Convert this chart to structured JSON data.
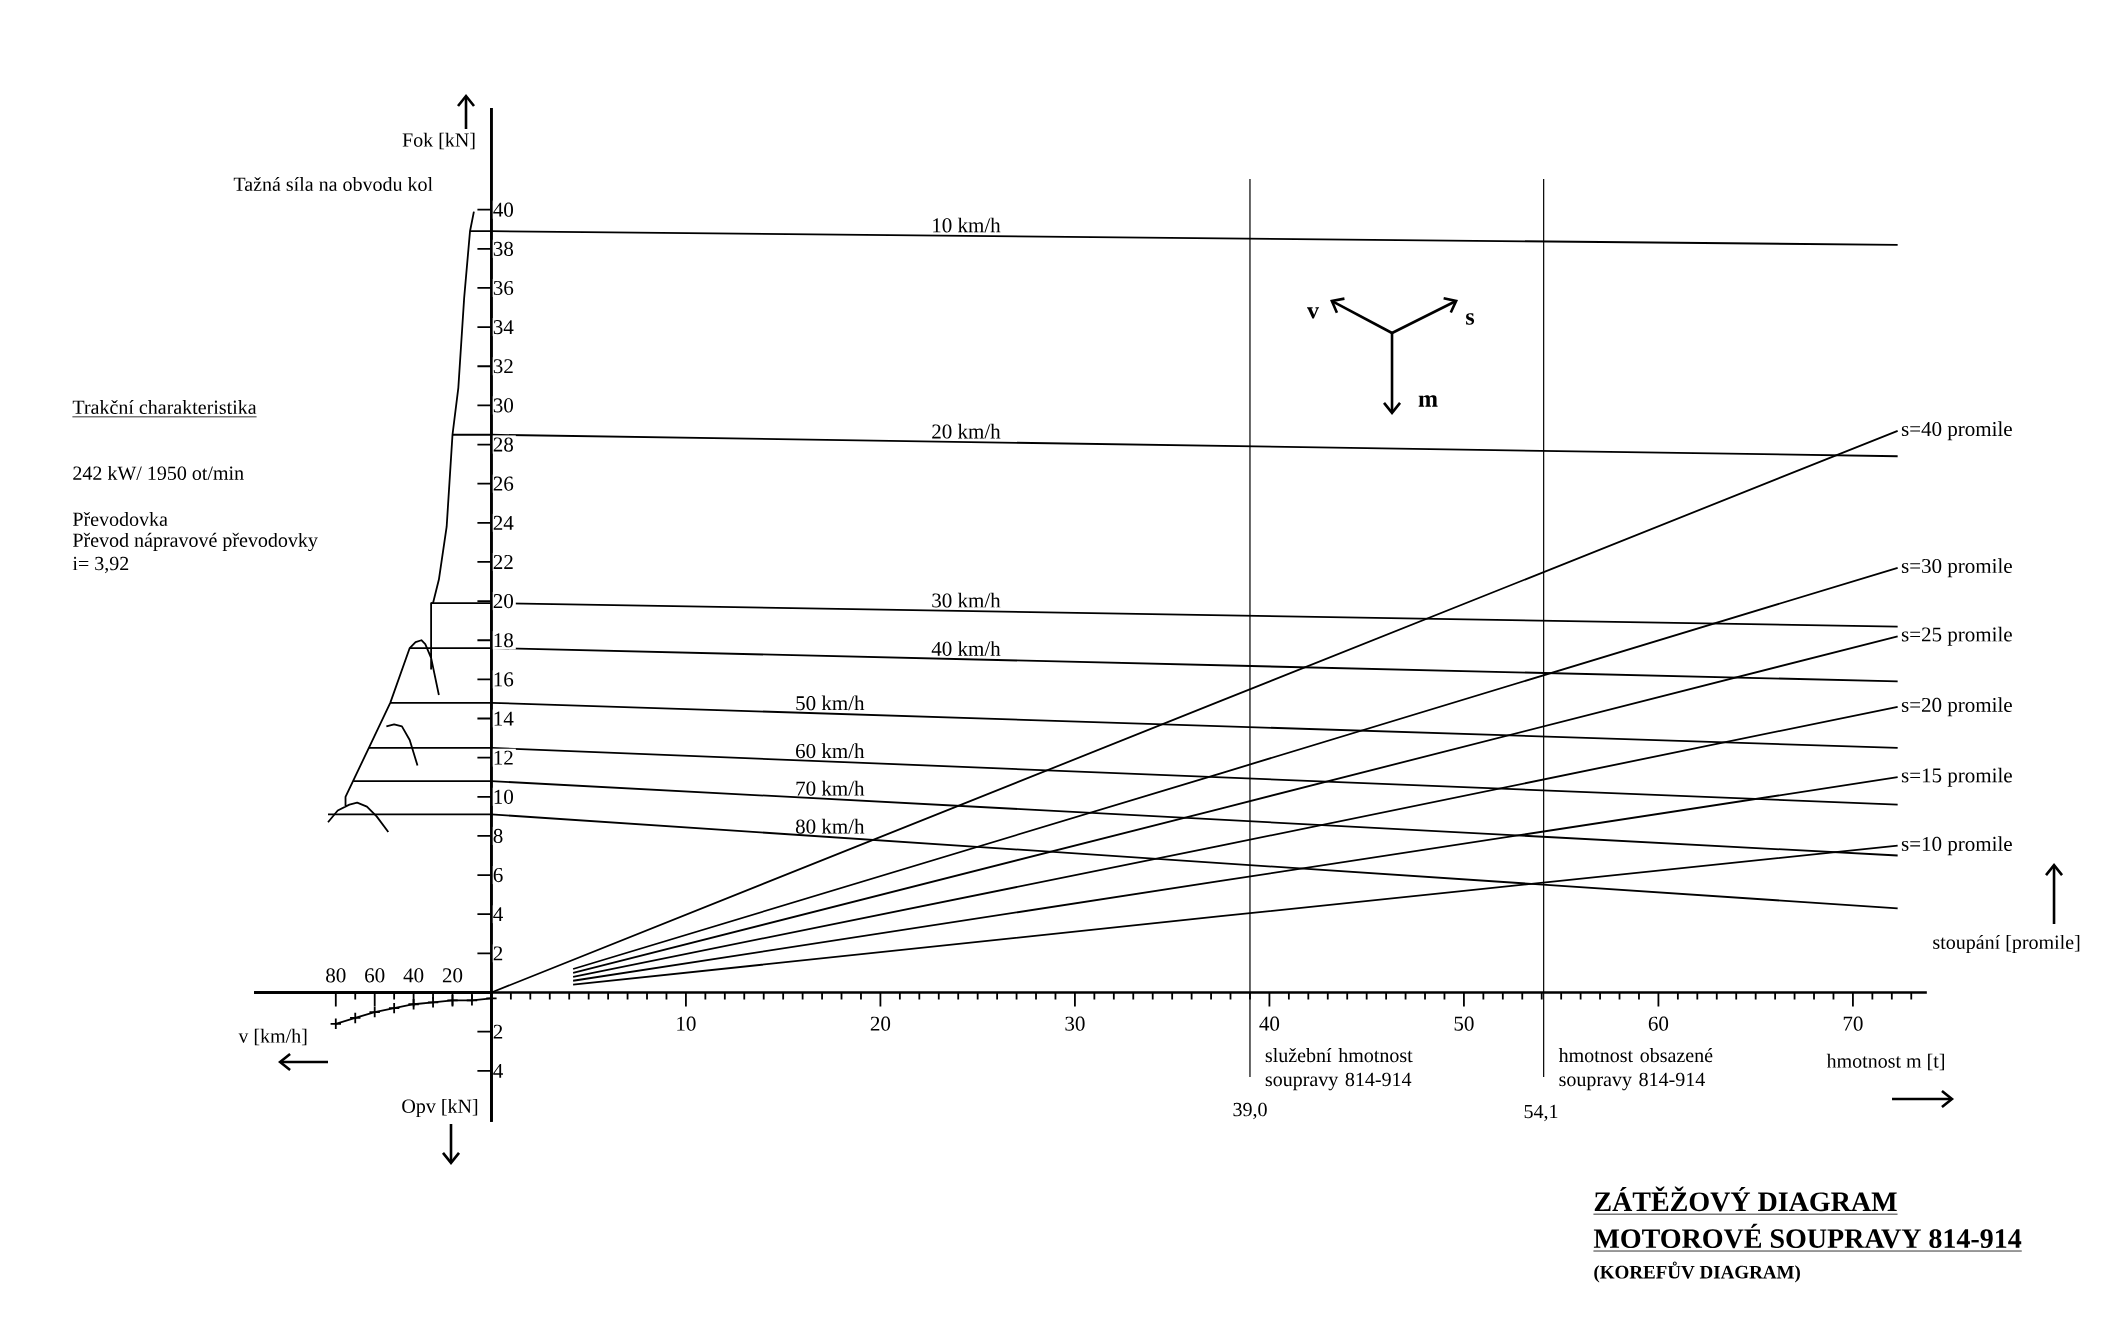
{
  "chart_data": [
    {
      "type": "line",
      "title": "ZÁTĚŽOVÝ DIAGRAM",
      "subtitle": "MOTOROVÉ SOUPRAVY 814-914",
      "xlabel": "hmotnost m [t]",
      "ylabel": "Fok [kN]",
      "annotations": [
        "Tažná síla na obvodu kol",
        "stoupání [promile]",
        "v",
        "s",
        "m",
        "(KOREFŮV DIAGRAM)",
        "39,0",
        "54,1"
      ],
      "xlim": [
        -12.2,
        73.8
      ],
      "ylim": [
        -6.6,
        45.2
      ],
      "xticks": [
        {
          "value": 1,
          "label": null
        },
        {
          "value": 2,
          "label": null
        },
        {
          "value": 3,
          "label": null
        },
        {
          "value": 4,
          "label": null
        },
        {
          "value": 5,
          "label": null
        },
        {
          "value": 6,
          "label": null
        },
        {
          "value": 7,
          "label": null
        },
        {
          "value": 8,
          "label": null
        },
        {
          "value": 9,
          "label": null
        },
        10,
        {
          "value": 11,
          "label": null
        },
        {
          "value": 12,
          "label": null
        },
        {
          "value": 13,
          "label": null
        },
        {
          "value": 14,
          "label": null
        },
        {
          "value": 15,
          "label": null
        },
        {
          "value": 16,
          "label": null
        },
        {
          "value": 17,
          "label": null
        },
        {
          "value": 18,
          "label": null
        },
        {
          "value": 19,
          "label": null
        },
        20,
        {
          "value": 21,
          "label": null
        },
        {
          "value": 22,
          "label": null
        },
        {
          "value": 23,
          "label": null
        },
        {
          "value": 24,
          "label": null
        },
        {
          "value": 25,
          "label": null
        },
        {
          "value": 26,
          "label": null
        },
        {
          "value": 27,
          "label": null
        },
        {
          "value": 28,
          "label": null
        },
        {
          "value": 29,
          "label": null
        },
        30,
        {
          "value": 31,
          "label": null
        },
        {
          "value": 32,
          "label": null
        },
        {
          "value": 33,
          "label": null
        },
        {
          "value": 34,
          "label": null
        },
        {
          "value": 35,
          "label": null
        },
        {
          "value": 36,
          "label": null
        },
        {
          "value": 37,
          "label": null
        },
        {
          "value": 38,
          "label": null
        },
        {
          "value": 39,
          "label": null
        },
        40,
        {
          "value": 41,
          "label": null
        },
        {
          "value": 42,
          "label": null
        },
        {
          "value": 43,
          "label": null
        },
        {
          "value": 44,
          "label": null
        },
        {
          "value": 45,
          "label": null
        },
        {
          "value": 46,
          "label": null
        },
        {
          "value": 47,
          "label": null
        },
        {
          "value": 48,
          "label": null
        },
        {
          "value": 49,
          "label": null
        },
        50,
        {
          "value": 51,
          "label": null
        },
        {
          "value": 52,
          "label": null
        },
        {
          "value": 53,
          "label": null
        },
        {
          "value": 54,
          "label": null
        },
        {
          "value": 55,
          "label": null
        },
        {
          "value": 56,
          "label": null
        },
        {
          "value": 57,
          "label": null
        },
        {
          "value": 58,
          "label": null
        },
        {
          "value": 59,
          "label": null
        },
        60,
        {
          "value": 61,
          "label": null
        },
        {
          "value": 62,
          "label": null
        },
        {
          "value": 63,
          "label": null
        },
        {
          "value": 64,
          "label": null
        },
        {
          "value": 65,
          "label": null
        },
        {
          "value": 66,
          "label": null
        },
        {
          "value": 67,
          "label": null
        },
        {
          "value": 68,
          "label": null
        },
        {
          "value": 69,
          "label": null
        },
        70,
        {
          "value": 71,
          "label": null
        },
        {
          "value": 72,
          "label": null
        },
        {
          "value": 73,
          "label": null
        }
      ],
      "yticks": [
        2,
        4,
        6,
        8,
        10,
        12,
        14,
        16,
        18,
        20,
        22,
        24,
        26,
        28,
        30,
        32,
        34,
        36,
        38,
        40
      ],
      "ref_lines": [
        {
          "axis": "x",
          "value": 39.0,
          "label": "služební hmotnost soupravy 814-914",
          "color": "#000000"
        },
        {
          "axis": "x",
          "value": 54.1,
          "label": "hmotnost obsazené soupravy 814-914",
          "color": "#000000"
        }
      ],
      "series": [
        {
          "name": "10 km/h",
          "color": "#000000",
          "x": [
            -1.1,
            0,
            72.3
          ],
          "values": [
            38.9,
            38.9,
            38.2
          ]
        },
        {
          "name": "20 km/h",
          "color": "#000000",
          "x": [
            -2.0,
            0,
            72.3
          ],
          "values": [
            28.5,
            28.5,
            27.4
          ]
        },
        {
          "name": "30 km/h",
          "color": "#000000",
          "x": [
            -3.1,
            0,
            72.3
          ],
          "values": [
            19.9,
            19.9,
            18.7
          ]
        },
        {
          "name": "40 km/h",
          "color": "#000000",
          "x": [
            -4.2,
            0,
            72.3
          ],
          "values": [
            17.6,
            17.6,
            15.9
          ]
        },
        {
          "name": "50 km/h",
          "color": "#000000",
          "x": [
            -5.2,
            0,
            72.3
          ],
          "values": [
            14.8,
            14.8,
            12.5
          ]
        },
        {
          "name": "60 km/h",
          "color": "#000000",
          "x": [
            -6.3,
            0,
            72.3
          ],
          "values": [
            12.5,
            12.5,
            9.6
          ]
        },
        {
          "name": "70 km/h",
          "color": "#000000",
          "x": [
            -7.1,
            0,
            72.3
          ],
          "values": [
            10.8,
            10.8,
            7.0
          ]
        },
        {
          "name": "80 km/h",
          "color": "#000000",
          "x": [
            -8.4,
            0,
            72.3
          ],
          "values": [
            9.1,
            9.1,
            4.3
          ]
        },
        {
          "name": "s=40 promile",
          "color": "#000000",
          "x": [
            0,
            37.5,
            72.3
          ],
          "values": [
            0,
            14.9,
            28.7
          ]
        },
        {
          "name": "s=30 promile",
          "color": "#000000",
          "x": [
            4.2,
            37.5,
            72.3
          ],
          "values": [
            1.2,
            11.2,
            21.7
          ]
        },
        {
          "name": "s=25 promile",
          "color": "#000000",
          "x": [
            4.2,
            37.5,
            72.3
          ],
          "values": [
            1.0,
            9.4,
            18.2
          ]
        },
        {
          "name": "s=20 promile",
          "color": "#000000",
          "x": [
            4.2,
            37.5,
            72.3
          ],
          "values": [
            0.8,
            7.5,
            14.6
          ]
        },
        {
          "name": "s=15 promile",
          "color": "#000000",
          "x": [
            4.2,
            37.5,
            72.3
          ],
          "values": [
            0.6,
            5.7,
            11.0
          ]
        },
        {
          "name": "s=10 promile",
          "color": "#000000",
          "x": [
            4.2,
            37.5,
            72.3
          ],
          "values": [
            0.4,
            3.9,
            7.5
          ]
        }
      ]
    },
    {
      "type": "line",
      "title": "Trakční charakteristika",
      "xlabel": "v [km/h]",
      "annotations": [
        "242 kW/ 1950 ot/min",
        "Převodovka",
        "Převod nápravové převodovky",
        "i= 3,92"
      ],
      "xlim": [
        122,
        0
      ],
      "ylim": [
        -6.6,
        45.2
      ],
      "xticks": [
        80,
        {
          "value": 70,
          "label": null
        },
        60,
        {
          "value": 50,
          "label": null
        },
        40,
        {
          "value": 30,
          "label": null
        },
        20,
        {
          "value": 10,
          "label": null
        }
      ],
      "tick_labels": "x",
      "series": [
        {
          "color": "#000000",
          "x": [
            84,
            79,
            73,
            69,
            64,
            59,
            53,
            null,
            75,
            75,
            63,
            52,
            42,
            39,
            36,
            34,
            31,
            27,
            null,
            54,
            50,
            46,
            42,
            38,
            null,
            9,
            11,
            14,
            17,
            20,
            23,
            27,
            30,
            31,
            31
          ],
          "values": [
            8.7,
            9.3,
            9.6,
            9.7,
            9.5,
            9.0,
            8.2,
            null,
            9.5,
            10.0,
            12.5,
            14.8,
            17.6,
            17.9,
            18.0,
            17.8,
            17.1,
            15.2,
            null,
            13.6,
            13.7,
            13.6,
            12.9,
            11.6,
            null,
            39.9,
            38.9,
            35.5,
            30.9,
            28.5,
            23.8,
            21.1,
            19.9,
            19.9,
            16.5
          ]
        }
      ]
    },
    {
      "type": "line",
      "ylabel": "Opv [kN]",
      "xlim": [
        122,
        0
      ],
      "ylim": [
        6.6,
        0
      ],
      "yticks": [
        2,
        4
      ],
      "tick_labels": "y",
      "series": [
        {
          "color": "#000000",
          "marker": "cross",
          "x": [
            80,
            70,
            60,
            50,
            40,
            30,
            20,
            10,
            0
          ],
          "values": [
            1.6,
            1.3,
            1.0,
            0.8,
            0.6,
            0.5,
            0.4,
            0.4,
            0.3
          ]
        }
      ]
    }
  ]
}
